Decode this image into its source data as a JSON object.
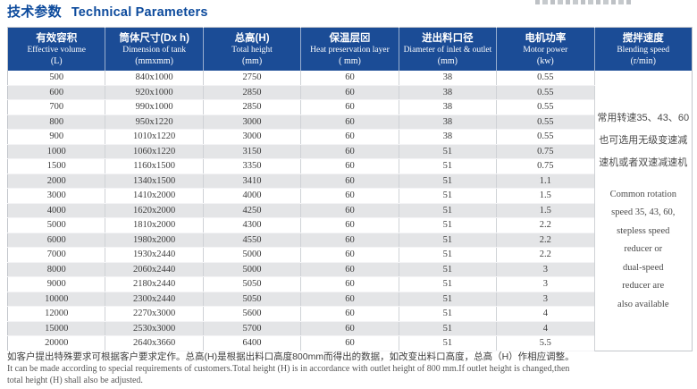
{
  "page": {
    "title_zh": "技术参数",
    "title_en": "Technical Parameters"
  },
  "table": {
    "columns": [
      {
        "zh": "有效容积",
        "en": "Effective volume",
        "unit": "(L)"
      },
      {
        "zh": "筒体尺寸(Dx h)",
        "en": "Dimension of tank",
        "unit": "(mmxmm)"
      },
      {
        "zh": "总高(H)",
        "en": "Total height",
        "unit": "(mm)"
      },
      {
        "zh": "保温层⊠",
        "en": "Heat preservation layer",
        "unit": "( mm)"
      },
      {
        "zh": "进出料口径",
        "en": "Diameter of inlet & outlet",
        "unit": "(mm)"
      },
      {
        "zh": "电机功率",
        "en": "Motor power",
        "unit": "(kw)"
      },
      {
        "zh": "搅拌速度",
        "en": "Blending speed",
        "unit": "(r/min)"
      }
    ],
    "rows": [
      [
        "500",
        "840x1000",
        "2750",
        "60",
        "38",
        "0.55"
      ],
      [
        "600",
        "920x1000",
        "2850",
        "60",
        "38",
        "0.55"
      ],
      [
        "700",
        "990x1000",
        "2850",
        "60",
        "38",
        "0.55"
      ],
      [
        "800",
        "950x1220",
        "3000",
        "60",
        "38",
        "0.55"
      ],
      [
        "900",
        "1010x1220",
        "3000",
        "60",
        "38",
        "0.55"
      ],
      [
        "1000",
        "1060x1220",
        "3150",
        "60",
        "51",
        "0.75"
      ],
      [
        "1500",
        "1160x1500",
        "3350",
        "60",
        "51",
        "0.75"
      ],
      [
        "2000",
        "1340x1500",
        "3410",
        "60",
        "51",
        "1.1"
      ],
      [
        "3000",
        "1410x2000",
        "4000",
        "60",
        "51",
        "1.5"
      ],
      [
        "4000",
        "1620x2000",
        "4250",
        "60",
        "51",
        "1.5"
      ],
      [
        "5000",
        "1810x2000",
        "4300",
        "60",
        "51",
        "2.2"
      ],
      [
        "6000",
        "1980x2000",
        "4550",
        "60",
        "51",
        "2.2"
      ],
      [
        "7000",
        "1930x2440",
        "5000",
        "60",
        "51",
        "2.2"
      ],
      [
        "8000",
        "2060x2440",
        "5000",
        "60",
        "51",
        "3"
      ],
      [
        "9000",
        "2180x2440",
        "5050",
        "60",
        "51",
        "3"
      ],
      [
        "10000",
        "2300x2440",
        "5050",
        "60",
        "51",
        "3"
      ],
      [
        "12000",
        "2270x3000",
        "5600",
        "60",
        "51",
        "4"
      ],
      [
        "15000",
        "2530x3000",
        "5700",
        "60",
        "51",
        "4"
      ],
      [
        "20000",
        "2640x3660",
        "6400",
        "60",
        "51",
        "5.5"
      ]
    ],
    "blending_note_zh_lines": [
      "常用转速35、43、60",
      "也可选用无级变速减",
      "速机或者双速减速机"
    ],
    "blending_note_en_lines": [
      "Common rotation",
      "speed 35, 43, 60,",
      "stepless speed",
      "reducer or",
      "dual-speed",
      "reducer are",
      "also available"
    ]
  },
  "footnote": {
    "zh": "如客户提出特殊要求可根据客户要求定作。总高(H)是根据出料口高度800mm而得出的数据，如改变出料口高度，总高（H）作相应调整。",
    "en_line1": "It can be made according to special requirements of customers.Total height (H) is in accordance with outlet height of 800 mm.If outlet height is changed,then",
    "en_line2": "total height (H) shall also be adjusted."
  },
  "colors": {
    "header_blue": "#1b4c96",
    "title_blue": "#0c4a9c",
    "row_stripe_gray": "#e4e5e7"
  }
}
